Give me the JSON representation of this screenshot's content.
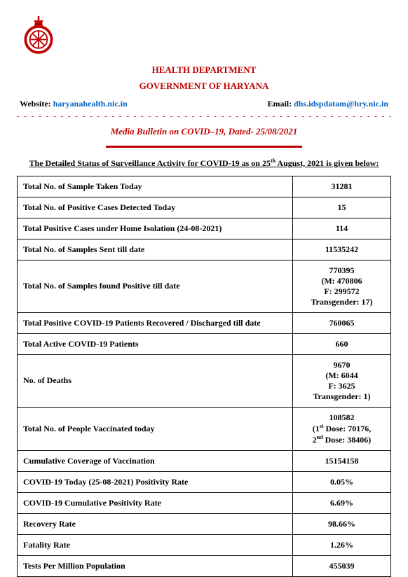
{
  "colors": {
    "accent": "#c00000",
    "link": "#0563c1",
    "text": "#000000",
    "border": "#000000",
    "background": "#ffffff"
  },
  "header": {
    "dept": "HEALTH DEPARTMENT",
    "govt": "GOVERNMENT OF HARYANA",
    "website_label": "Website: ",
    "website_link": "haryanahealth.nic.in",
    "email_label": "Email: ",
    "email_link": "dhs.idspdatam@hry.nic.in"
  },
  "bulletin": {
    "prefix": "Media Bulletin on ",
    "bold": "COVID–19,",
    "dated": " Dated- 25/08/2021"
  },
  "subhead": {
    "pre": "The Detailed Status of Surveillance Activity for COVID-19 as on 25",
    "sup": "th",
    "post": " August, 2021 is given below:"
  },
  "rows": [
    {
      "label": "Total No. of Sample Taken Today",
      "value": "31281"
    },
    {
      "label": "Total No. of Positive Cases Detected Today",
      "value": "15"
    },
    {
      "label": "Total Positive Cases under Home Isolation (24-08-2021)",
      "value": "114"
    },
    {
      "label": "Total No. of Samples Sent till date",
      "value": "11535242"
    },
    {
      "label": "Total No. of Samples found Positive till date",
      "value_lines": [
        "770395",
        "(M: 470806",
        "F: 299572",
        "Transgender: 17)"
      ]
    },
    {
      "label": "Total Positive COVID-19 Patients Recovered / Discharged till date",
      "value": "760065"
    },
    {
      "label": "Total Active COVID-19 Patients",
      "value": "660"
    },
    {
      "label": "No. of Deaths",
      "value_lines": [
        "9670",
        "(M: 6044",
        "F: 3625",
        "Transgender: 1)"
      ]
    },
    {
      "label": "Total No. of People Vaccinated today",
      "value_html": "108582<br>(1<sup>st</sup> Dose: 70176,<br>2<sup>nd</sup> Dose: 38406)"
    },
    {
      "label": "Cumulative Coverage of Vaccination",
      "value": "15154158"
    },
    {
      "label": "COVID-19 Today (25-08-2021) Positivity Rate",
      "value": "0.05%"
    },
    {
      "label": "COVID-19 Cumulative Positivity Rate",
      "value": "6.69%"
    },
    {
      "label": "Recovery Rate",
      "value": "98.66%"
    },
    {
      "label": "Fatality Rate",
      "value": "1.26%"
    },
    {
      "label": "Tests Per Million Population",
      "value": "455039"
    }
  ]
}
